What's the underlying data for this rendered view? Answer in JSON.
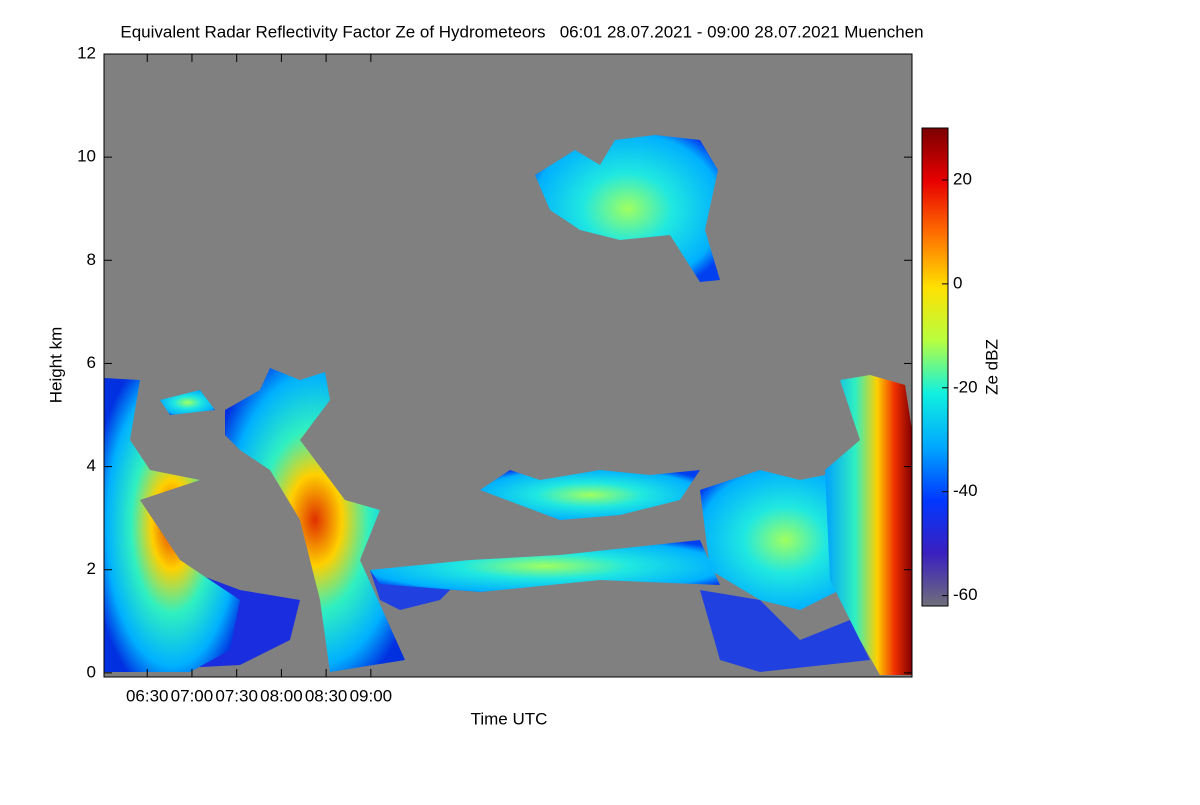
{
  "chart_data": {
    "type": "heatmap",
    "title": "Equivalent Radar Reflectivity Factor Ze of Hydrometeors   06:01 28.07.2021 - 09:00 28.07.2021 Muenchen",
    "x_label": "Time UTC",
    "y_label": "Height km",
    "xlim": [
      361,
      903
    ],
    "xticks": [
      {
        "value": 390,
        "label": "06:30"
      },
      {
        "value": 420,
        "label": "07:00"
      },
      {
        "value": 450,
        "label": "07:30"
      },
      {
        "value": 480,
        "label": "08:00"
      },
      {
        "value": 510,
        "label": "08:30"
      },
      {
        "value": 540,
        "label": "09:00"
      }
    ],
    "ylim": [
      -0.08,
      12
    ],
    "yticks": [
      0,
      2,
      4,
      6,
      8,
      10,
      12
    ],
    "colorbar": {
      "label": "Ze dBZ",
      "lim": [
        -62,
        30
      ],
      "ticks": [
        -60,
        -40,
        -20,
        0,
        20
      ],
      "colormap": [
        "#6f6f7a",
        "#3a1fc0",
        "#0038ff",
        "#00a8ff",
        "#10f0e0",
        "#b8ff40",
        "#ffe000",
        "#ff7000",
        "#e80000",
        "#7a0000"
      ]
    },
    "background": "#808080"
  }
}
